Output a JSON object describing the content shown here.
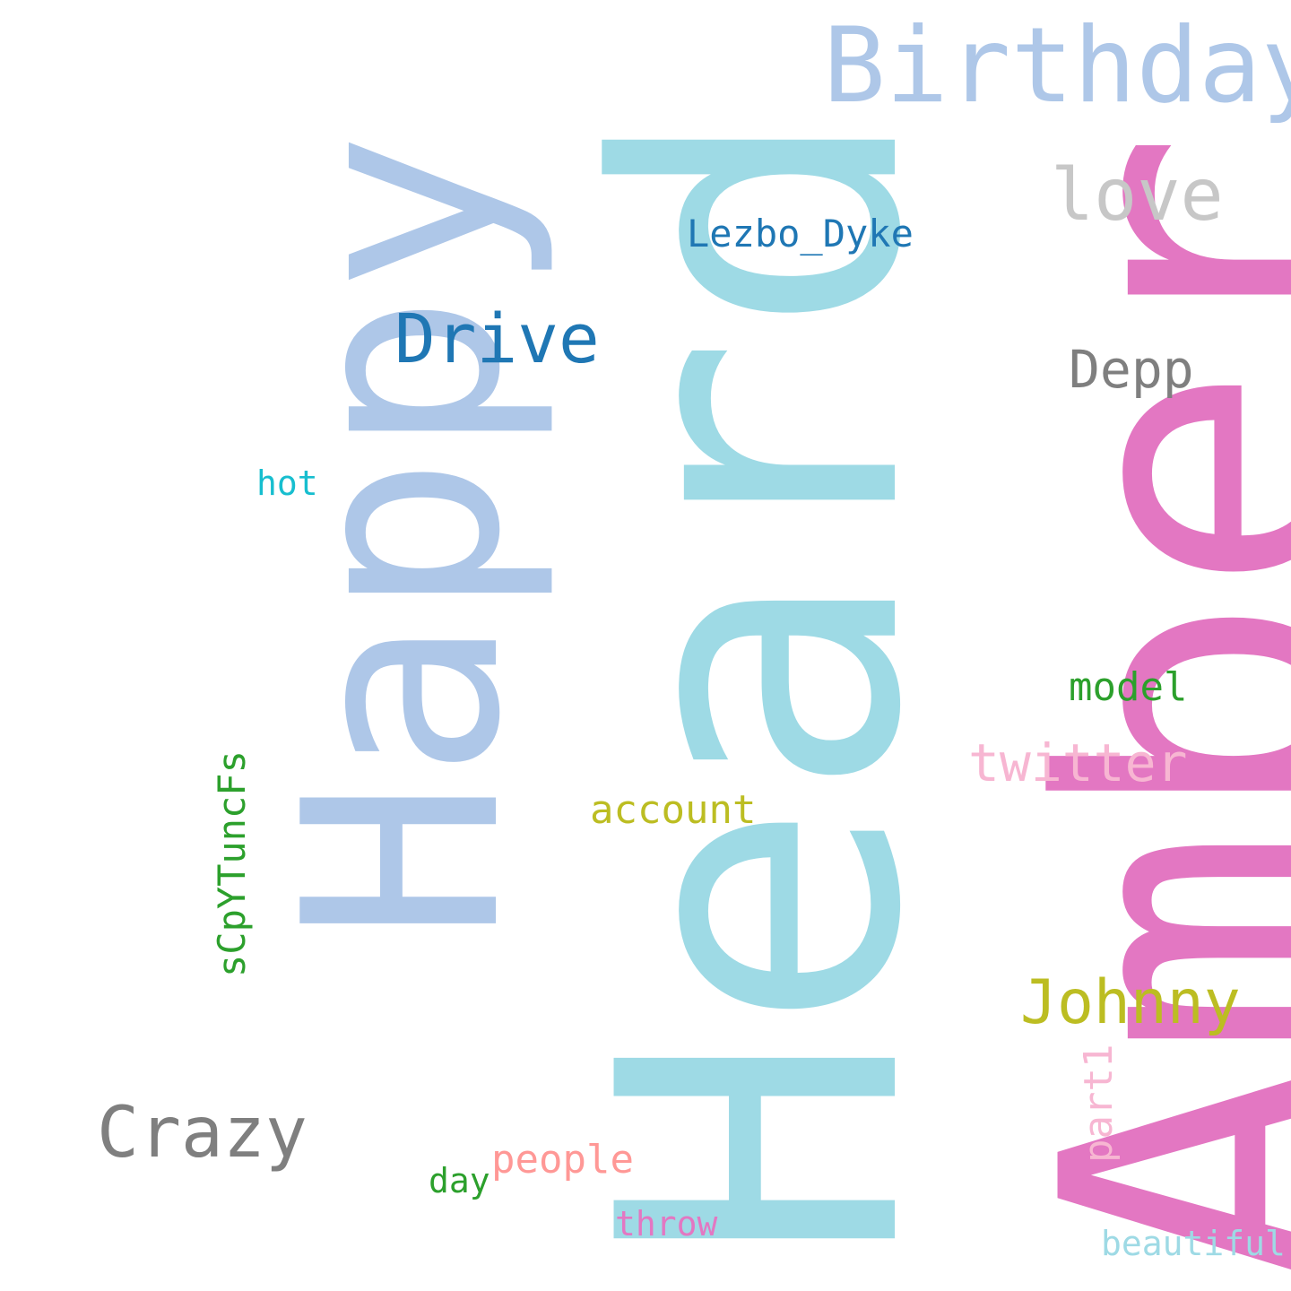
{
  "words": {
    "amber": {
      "text": "Amber",
      "color": "#e377c2"
    },
    "heard": {
      "text": "Heard",
      "color": "#9edae5"
    },
    "happy": {
      "text": "Happy",
      "color": "#aec7e8"
    },
    "birthday": {
      "text": "Birthday",
      "color": "#aec7e8"
    },
    "love": {
      "text": "love",
      "color": "#c7c7c7"
    },
    "lezbo_dyke": {
      "text": "Lezbo_Dyke",
      "color": "#1f77b4"
    },
    "drive": {
      "text": "Drive",
      "color": "#1f77b4"
    },
    "depp": {
      "text": "Depp",
      "color": "#7f7f7f"
    },
    "hot": {
      "text": "hot",
      "color": "#17becf"
    },
    "model": {
      "text": "model",
      "color": "#2ca02c"
    },
    "twitter": {
      "text": "twitter",
      "color": "#f7b6d2"
    },
    "account": {
      "text": "account",
      "color": "#bcbd22"
    },
    "scpytuncfs": {
      "text": "sCpYTuncFs",
      "color": "#2ca02c"
    },
    "johnny": {
      "text": "Johnny",
      "color": "#bcbd22"
    },
    "part1": {
      "text": "part1",
      "color": "#f7b6d2"
    },
    "crazy": {
      "text": "Crazy",
      "color": "#7f7f7f"
    },
    "people": {
      "text": "people",
      "color": "#ff9896"
    },
    "day": {
      "text": "day",
      "color": "#2ca02c"
    },
    "throw": {
      "text": "throw",
      "color": "#e377c2"
    },
    "beautiful": {
      "text": "beautiful",
      "color": "#9edae5"
    }
  }
}
